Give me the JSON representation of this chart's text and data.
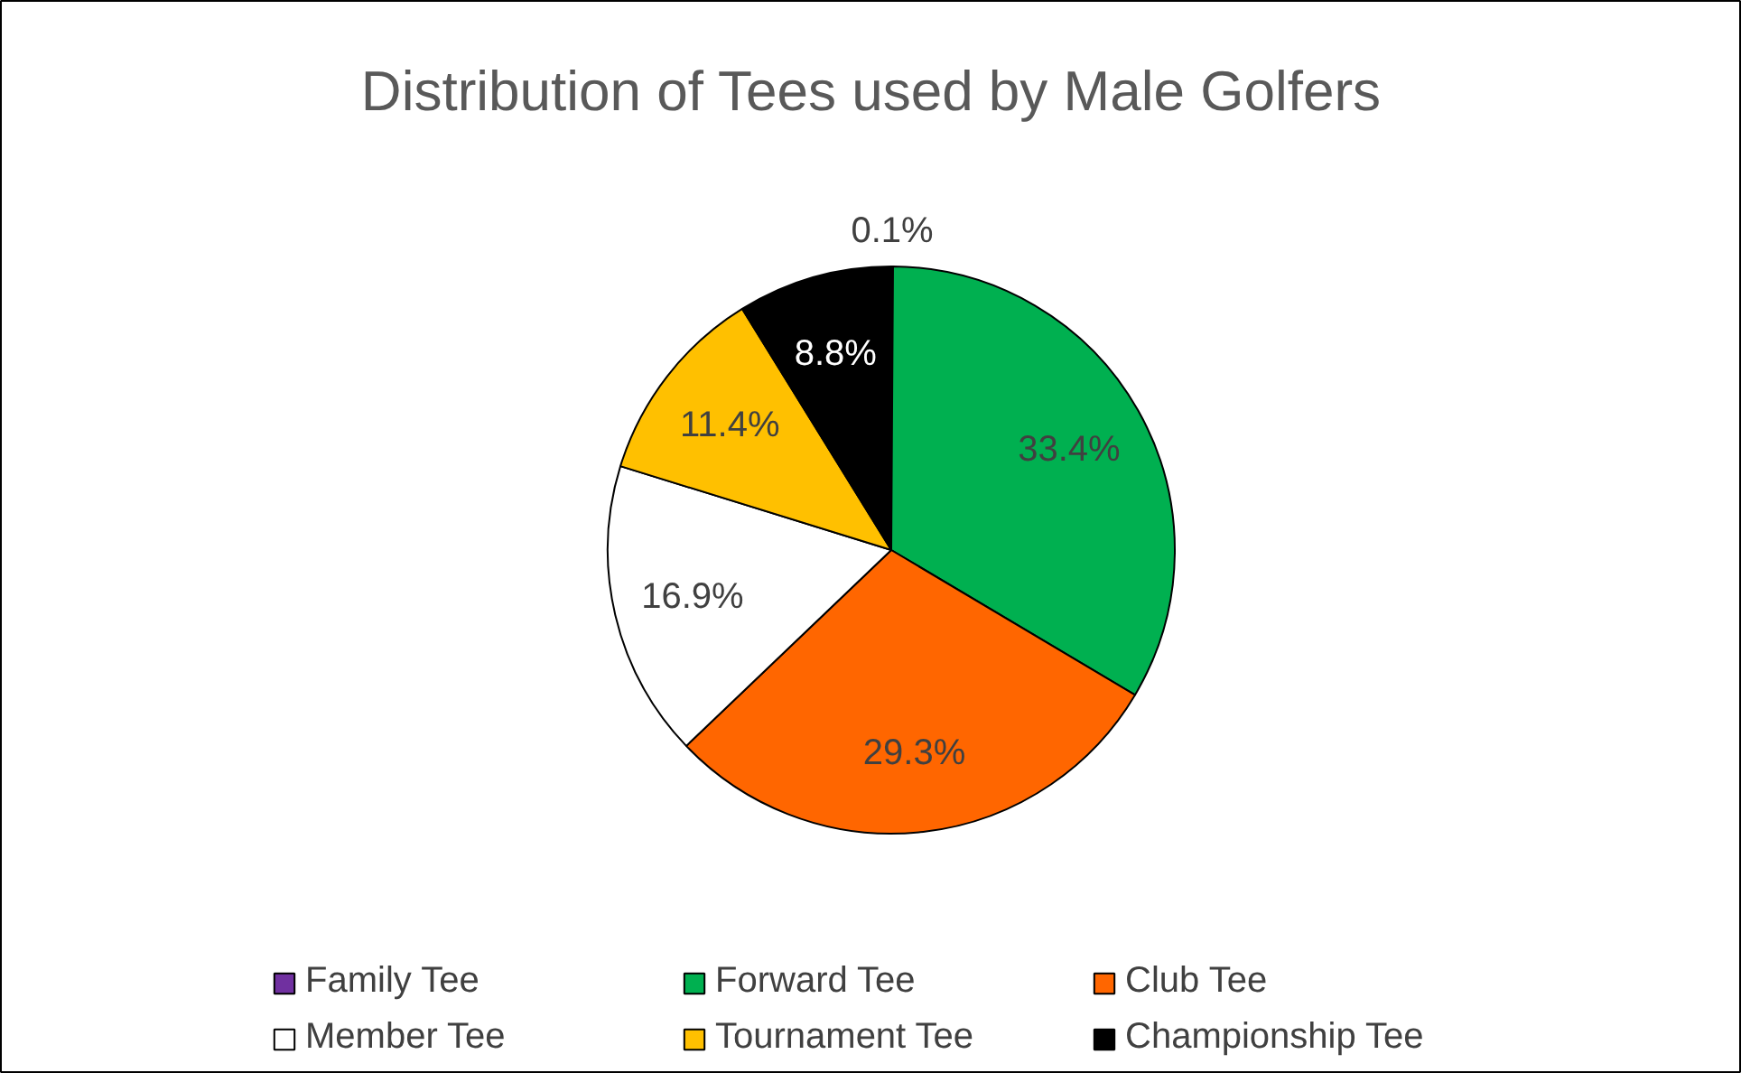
{
  "chart_data": {
    "type": "pie",
    "title": "Distribution of Tees used by Male Golfers",
    "categories": [
      "Family Tee",
      "Forward Tee",
      "Club Tee",
      "Member Tee",
      "Tournament Tee",
      "Championship Tee"
    ],
    "values": [
      0.1,
      33.4,
      29.3,
      16.9,
      11.4,
      8.8
    ],
    "colors": [
      "#7030a0",
      "#00b050",
      "#ff6600",
      "#ffffff",
      "#ffc000",
      "#000000"
    ],
    "value_labels": [
      "0.1%",
      "33.4%",
      "29.3%",
      "16.9%",
      "11.4%",
      "8.8%"
    ],
    "legend": "bottom"
  }
}
